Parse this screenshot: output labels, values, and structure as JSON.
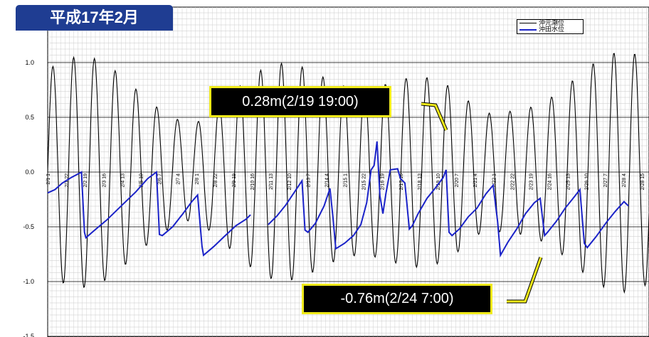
{
  "title_badge": "平成17年2月",
  "legend": [
    {
      "name": "沖元潮位",
      "color": "#000000"
    },
    {
      "name": "沖田水位",
      "color": "#1a22c8"
    }
  ],
  "callouts": {
    "peak": "0.28m(2/19 19:00)",
    "low": "-0.76m(2/24 7:00)"
  },
  "colors": {
    "badge": "#1f3d92",
    "callout_border": "#f0ea1a",
    "tide": "#000000",
    "water": "#1a22c8",
    "arrow": "#f0ea1a"
  },
  "chart_data": {
    "type": "line",
    "ylim": [
      -1.5,
      1.5
    ],
    "ytick_labels": [
      "1.0",
      "0.5",
      "0.0",
      "-0.5",
      "-1.0",
      "-1.5"
    ],
    "yticks": [
      1.0,
      0.5,
      0.0,
      -0.5,
      -1.0,
      -1.5
    ],
    "x_tick_labels": [
      "2/1 1",
      "2/1 22",
      "2/2 19",
      "2/3 16",
      "2/4 13",
      "2/5 10",
      "2/6 7",
      "2/7 4",
      "2/8 1",
      "2/8 22",
      "2/9 19",
      "2/10 16",
      "2/11 13",
      "2/12 10",
      "2/13 7",
      "2/14 4",
      "2/15 1",
      "2/15 22",
      "2/16 19",
      "2/17 16",
      "2/18 13",
      "2/19 10",
      "2/20 7",
      "2/21 4",
      "2/22 1",
      "2/22 22",
      "2/23 19",
      "2/24 16",
      "2/25 13",
      "2/26 10",
      "2/27 7",
      "2/28 4",
      "2/28 15"
    ],
    "x_start_day": 1,
    "x_end_day": 29,
    "series": [
      {
        "name": "沖元潮位",
        "amplitude": 1.1,
        "mean": 0.0
      },
      {
        "name": "沖田水位",
        "segments": [
          [
            [
              1.0,
              -0.19
            ],
            [
              1.5,
              -0.16
            ],
            [
              2.0,
              -0.1
            ],
            [
              2.6,
              -0.05
            ],
            [
              3.3,
              0.0
            ],
            [
              3.5,
              -0.55
            ],
            [
              3.6,
              -0.6
            ],
            [
              4.2,
              -0.53
            ],
            [
              5.0,
              -0.44
            ],
            [
              6.0,
              -0.31
            ],
            [
              7.0,
              -0.18
            ],
            [
              7.8,
              -0.06
            ],
            [
              8.4,
              -0.0
            ],
            [
              8.6,
              -0.57
            ],
            [
              8.8,
              -0.58
            ],
            [
              9.5,
              -0.5
            ],
            [
              10.2,
              -0.38
            ],
            [
              10.8,
              -0.27
            ],
            [
              11.2,
              -0.21
            ],
            [
              11.5,
              -0.68
            ],
            [
              11.6,
              -0.76
            ],
            [
              12.3,
              -0.68
            ],
            [
              13.0,
              -0.59
            ],
            [
              13.8,
              -0.49
            ],
            [
              14.5,
              -0.43
            ],
            [
              14.8,
              -0.39
            ]
          ],
          [
            [
              16.0,
              -0.48
            ],
            [
              16.6,
              -0.4
            ],
            [
              17.2,
              -0.3
            ],
            [
              17.8,
              -0.18
            ],
            [
              18.3,
              -0.08
            ],
            [
              18.5,
              -0.53
            ],
            [
              18.7,
              -0.55
            ],
            [
              19.2,
              -0.47
            ],
            [
              19.8,
              -0.31
            ],
            [
              20.2,
              -0.15
            ],
            [
              20.4,
              -0.41
            ],
            [
              20.6,
              -0.7
            ],
            [
              21.2,
              -0.65
            ],
            [
              21.8,
              -0.58
            ],
            [
              22.3,
              -0.48
            ],
            [
              22.7,
              -0.28
            ],
            [
              23.0,
              0.02
            ],
            [
              23.2,
              0.06
            ],
            [
              23.4,
              0.28
            ],
            [
              23.6,
              -0.22
            ],
            [
              23.8,
              -0.38
            ],
            [
              24.0,
              -0.2
            ],
            [
              24.3,
              0.02
            ],
            [
              24.8,
              0.03
            ],
            [
              25.0,
              -0.06
            ],
            [
              25.3,
              -0.1
            ],
            [
              25.6,
              -0.52
            ],
            [
              25.8,
              -0.49
            ],
            [
              26.2,
              -0.38
            ],
            [
              26.8,
              -0.24
            ],
            [
              27.4,
              -0.14
            ],
            [
              27.9,
              -0.05
            ],
            [
              28.1,
              0.02
            ],
            [
              28.3,
              -0.55
            ],
            [
              28.5,
              -0.58
            ],
            [
              29.0,
              -0.52
            ],
            [
              29.6,
              -0.41
            ],
            [
              30.2,
              -0.33
            ],
            [
              30.8,
              -0.2
            ],
            [
              31.3,
              -0.12
            ],
            [
              31.6,
              -0.45
            ],
            [
              31.8,
              -0.76
            ],
            [
              32.3,
              -0.64
            ],
            [
              32.9,
              -0.52
            ],
            [
              33.5,
              -0.38
            ],
            [
              34.1,
              -0.28
            ],
            [
              34.5,
              -0.24
            ],
            [
              34.8,
              -0.58
            ],
            [
              35.0,
              -0.55
            ],
            [
              35.6,
              -0.45
            ],
            [
              36.2,
              -0.33
            ],
            [
              36.8,
              -0.23
            ],
            [
              37.2,
              -0.16
            ],
            [
              37.5,
              -0.65
            ],
            [
              37.7,
              -0.69
            ],
            [
              38.3,
              -0.59
            ],
            [
              39.0,
              -0.46
            ],
            [
              39.6,
              -0.36
            ],
            [
              40.2,
              -0.27
            ],
            [
              40.5,
              -0.31
            ]
          ]
        ]
      }
    ]
  }
}
